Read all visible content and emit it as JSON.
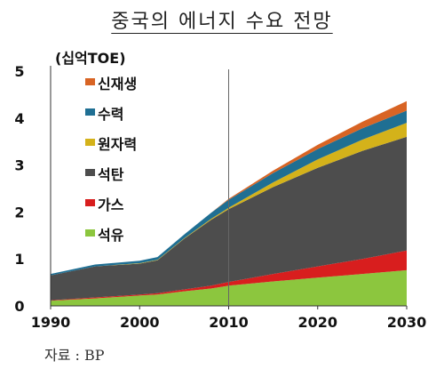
{
  "title": "중국의 에너지 수요 전망",
  "unit_label": "(십억TOE)",
  "source": "자료 : BP",
  "chart_data": {
    "type": "area",
    "stacked": true,
    "x": [
      1990,
      1995,
      2000,
      2002,
      2005,
      2008,
      2010,
      2015,
      2020,
      2025,
      2030
    ],
    "series": [
      {
        "name": "석유",
        "color": "#8cc63e",
        "values": [
          0.11,
          0.16,
          0.22,
          0.24,
          0.31,
          0.37,
          0.43,
          0.52,
          0.6,
          0.68,
          0.76
        ]
      },
      {
        "name": "가스",
        "color": "#d81e1e",
        "values": [
          0.01,
          0.02,
          0.02,
          0.03,
          0.04,
          0.06,
          0.08,
          0.16,
          0.24,
          0.32,
          0.42
        ]
      },
      {
        "name": "석탄",
        "color": "#4d4d4d",
        "values": [
          0.53,
          0.66,
          0.66,
          0.7,
          1.08,
          1.4,
          1.55,
          1.85,
          2.1,
          2.3,
          2.42
        ]
      },
      {
        "name": "원자력",
        "color": "#d4b21a",
        "values": [
          0,
          0,
          0.01,
          0.01,
          0.01,
          0.02,
          0.03,
          0.1,
          0.18,
          0.24,
          0.3
        ]
      },
      {
        "name": "수력",
        "color": "#1f6f93",
        "values": [
          0.03,
          0.04,
          0.05,
          0.06,
          0.08,
          0.13,
          0.17,
          0.2,
          0.22,
          0.24,
          0.26
        ]
      },
      {
        "name": "신재생",
        "color": "#d86424",
        "values": [
          0,
          0,
          0,
          0,
          0,
          0,
          0.02,
          0.05,
          0.09,
          0.14,
          0.2
        ]
      }
    ],
    "xlim": [
      1990,
      2030
    ],
    "ylim": [
      0,
      5
    ],
    "x_ticks": [
      1990,
      2000,
      2010,
      2020,
      2030
    ],
    "y_ticks": [
      0,
      1,
      2,
      3,
      4,
      5
    ],
    "marker_line_x": 2010,
    "legend_position": "upper-left"
  }
}
